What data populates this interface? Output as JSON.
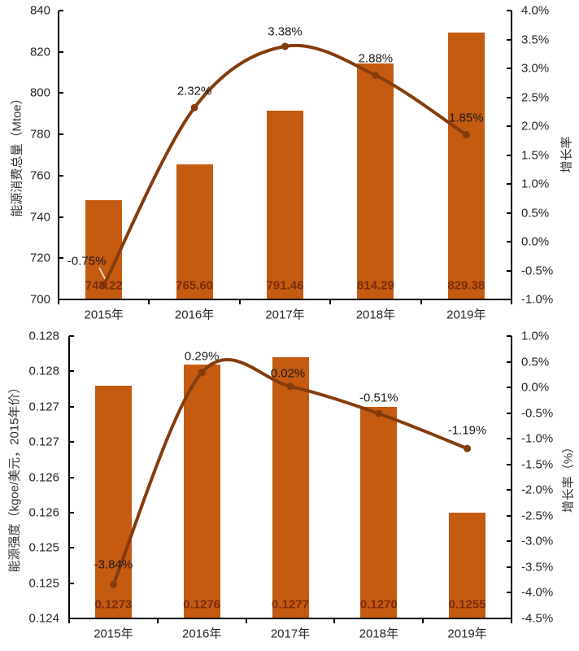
{
  "colors": {
    "bar": "#C55A11",
    "line": "#843C0C",
    "bar_label": "#7B2C0B",
    "point_label": "#1a1a1a",
    "axis": "#000000",
    "tick_text": "#262626",
    "leader_line": "#EDE4D8"
  },
  "chart_data": [
    {
      "type": "bar",
      "combo": "bar+line",
      "title": "",
      "categories": [
        "2015年",
        "2016年",
        "2017年",
        "2018年",
        "2019年"
      ],
      "series": [
        {
          "name": "能源消费总量",
          "type": "bar",
          "axis": "left",
          "values": [
            748.22,
            765.6,
            791.46,
            814.29,
            829.38
          ],
          "labels": [
            "748.22",
            "765.60",
            "791.46",
            "814.29",
            "829.38"
          ]
        },
        {
          "name": "增长率",
          "type": "line",
          "axis": "right",
          "values": [
            -0.75,
            2.32,
            3.38,
            2.88,
            1.85
          ],
          "labels": [
            "-0.75%",
            "2.32%",
            "3.38%",
            "2.88%",
            "1.85%"
          ]
        }
      ],
      "left_axis": {
        "title": "能源消费总量（Mtoe）",
        "min": 700,
        "max": 840,
        "ticks": [
          "840",
          "820",
          "800",
          "780",
          "760",
          "740",
          "720",
          "700"
        ]
      },
      "right_axis": {
        "title": "增长率",
        "min": -1.0,
        "max": 4.0,
        "ticks": [
          "4.0%",
          "3.5%",
          "3.0%",
          "2.5%",
          "2.0%",
          "1.5%",
          "1.0%",
          "0.5%",
          "0.0%",
          "-0.5%",
          "-1.0%"
        ]
      },
      "grid": false,
      "legend": "none"
    },
    {
      "type": "bar",
      "combo": "bar+line",
      "title": "",
      "categories": [
        "2015年",
        "2016年",
        "2017年",
        "2018年",
        "2019年"
      ],
      "series": [
        {
          "name": "能源强度",
          "type": "bar",
          "axis": "left",
          "values": [
            0.1273,
            0.1276,
            0.1277,
            0.127,
            0.1255
          ],
          "labels": [
            "0.1273",
            "0.1276",
            "0.1277",
            "0.1270",
            "0.1255"
          ]
        },
        {
          "name": "增长率",
          "type": "line",
          "axis": "right",
          "values": [
            -3.84,
            0.29,
            0.02,
            -0.51,
            -1.19
          ],
          "labels": [
            "-3.84%",
            "0.29%",
            "0.02%",
            "-0.51%",
            "-1.19%"
          ]
        }
      ],
      "left_axis": {
        "title": "能源强度（kgoe/美元，2015年价）",
        "min": 0.124,
        "max": 0.128,
        "ticks": [
          "0.128",
          "0.128",
          "0.127",
          "0.127",
          "0.126",
          "0.126",
          "0.125",
          "0.125",
          "0.124"
        ]
      },
      "right_axis": {
        "title": "增长率（%）",
        "min": -4.5,
        "max": 1.0,
        "ticks": [
          "1.0%",
          "0.5%",
          "0.0%",
          "-0.5%",
          "-1.0%",
          "-1.5%",
          "-2.0%",
          "-2.5%",
          "-3.0%",
          "-3.5%",
          "-4.0%",
          "-4.5%"
        ]
      },
      "grid": false,
      "legend": "none"
    }
  ]
}
